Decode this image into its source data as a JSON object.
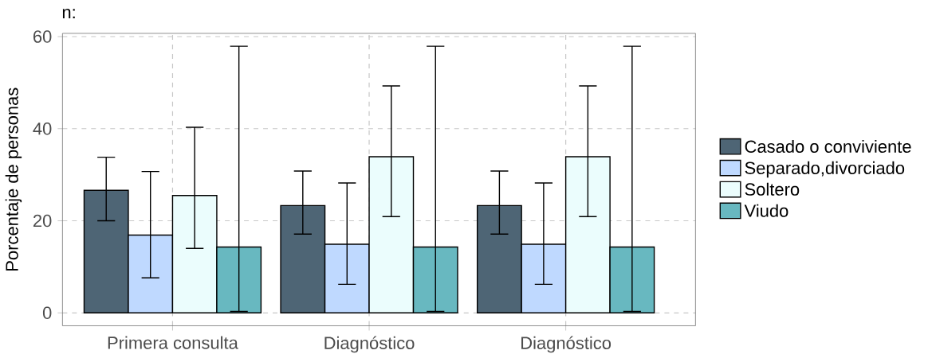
{
  "chart_data": {
    "type": "bar",
    "title": "n:",
    "ylabel": "Porcentaje de personas",
    "categories": [
      "Primera consulta",
      "Diagnóstico",
      "Diagnóstico"
    ],
    "series": [
      {
        "name": "Casado o conviviente",
        "color": "#4e6575",
        "values": [
          26.6,
          23.3,
          23.3
        ],
        "errors": [
          [
            20.0,
            33.8
          ],
          [
            17.1,
            30.8
          ],
          [
            17.1,
            30.8
          ]
        ]
      },
      {
        "name": "Separado,divorciado",
        "color": "#bfd9ff",
        "values": [
          16.9,
          14.9,
          14.9
        ],
        "errors": [
          [
            7.6,
            30.7
          ],
          [
            6.2,
            28.2
          ],
          [
            6.2,
            28.2
          ]
        ]
      },
      {
        "name": "Soltero",
        "color": "#ebfdfd",
        "values": [
          25.5,
          33.9,
          33.9
        ],
        "errors": [
          [
            14.0,
            40.3
          ],
          [
            20.9,
            49.3
          ],
          [
            20.9,
            49.3
          ]
        ]
      },
      {
        "name": "Viudo",
        "color": "#68b8c0",
        "values": [
          14.3,
          14.3,
          14.3
        ],
        "errors": [
          [
            0.3,
            57.9
          ],
          [
            0.3,
            57.9
          ],
          [
            0.3,
            57.9
          ]
        ]
      }
    ],
    "ylim": [
      -2.8,
      60.7
    ],
    "yticks": [
      0,
      20,
      40,
      60
    ],
    "grid": true,
    "legend": "right"
  }
}
